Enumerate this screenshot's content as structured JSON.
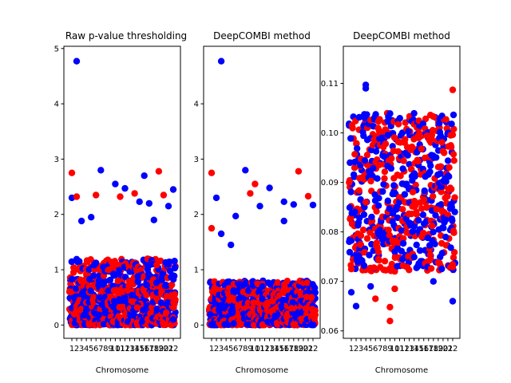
{
  "colors": {
    "series_a": "#ff0000",
    "series_b": "#0000ff"
  },
  "chart_data": [
    {
      "type": "scatter",
      "title": "Raw p-value thresholding",
      "xlabel": "Chromosome",
      "ylabel": "",
      "x_ticks": [
        "1",
        "2",
        "3",
        "4",
        "5",
        "6",
        "7",
        "8",
        "9",
        "10",
        "11",
        "12",
        "13",
        "14",
        "15",
        "16",
        "17",
        "18",
        "19",
        "20",
        "21",
        "22"
      ],
      "ylim": [
        -0.24,
        5.04
      ],
      "y_ticks": [
        0,
        1,
        2,
        3,
        4,
        5
      ],
      "y_tick_labels": [
        "0",
        "1",
        "2",
        "3",
        "4",
        "5"
      ],
      "grid": false,
      "point_spread": [
        0,
        1.2
      ],
      "highlights": [
        {
          "chromosome": 2,
          "value": 4.77,
          "series": "b"
        },
        {
          "chromosome": 7,
          "value": 2.8,
          "series": "b"
        },
        {
          "chromosome": 1,
          "value": 2.75,
          "series": "a"
        },
        {
          "chromosome": 16,
          "value": 2.7,
          "series": "b"
        },
        {
          "chromosome": 19,
          "value": 2.78,
          "series": "a"
        },
        {
          "chromosome": 10,
          "value": 2.55,
          "series": "b"
        },
        {
          "chromosome": 12,
          "value": 2.47,
          "series": "b"
        },
        {
          "chromosome": 22,
          "value": 2.45,
          "series": "b"
        },
        {
          "chromosome": 14,
          "value": 2.38,
          "series": "a"
        },
        {
          "chromosome": 6,
          "value": 2.35,
          "series": "a"
        },
        {
          "chromosome": 1,
          "value": 2.3,
          "series": "b"
        },
        {
          "chromosome": 2,
          "value": 2.32,
          "series": "a"
        },
        {
          "chromosome": 20,
          "value": 2.35,
          "series": "a"
        },
        {
          "chromosome": 11,
          "value": 2.32,
          "series": "a"
        },
        {
          "chromosome": 15,
          "value": 2.23,
          "series": "b"
        },
        {
          "chromosome": 17,
          "value": 2.2,
          "series": "b"
        },
        {
          "chromosome": 21,
          "value": 2.15,
          "series": "b"
        },
        {
          "chromosome": 5,
          "value": 1.95,
          "series": "b"
        },
        {
          "chromosome": 3,
          "value": 1.88,
          "series": "b"
        },
        {
          "chromosome": 18,
          "value": 1.9,
          "series": "b"
        }
      ]
    },
    {
      "type": "scatter",
      "title": "DeepCOMBI method",
      "xlabel": "Chromosome",
      "ylabel": "",
      "x_ticks": [
        "1",
        "2",
        "3",
        "4",
        "5",
        "6",
        "7",
        "8",
        "9",
        "10",
        "11",
        "12",
        "13",
        "14",
        "15",
        "16",
        "17",
        "18",
        "19",
        "20",
        "21",
        "22"
      ],
      "ylim": [
        -0.24,
        5.04
      ],
      "y_ticks": [
        0,
        1,
        2,
        3,
        4
      ],
      "y_tick_labels": [
        "0",
        "1",
        "2",
        "3",
        "4"
      ],
      "grid": false,
      "point_spread": [
        0,
        0.8
      ],
      "highlights": [
        {
          "chromosome": 3,
          "value": 4.77,
          "series": "b"
        },
        {
          "chromosome": 8,
          "value": 2.8,
          "series": "b"
        },
        {
          "chromosome": 1,
          "value": 2.75,
          "series": "a"
        },
        {
          "chromosome": 19,
          "value": 2.78,
          "series": "a"
        },
        {
          "chromosome": 10,
          "value": 2.55,
          "series": "a"
        },
        {
          "chromosome": 13,
          "value": 2.48,
          "series": "b"
        },
        {
          "chromosome": 9,
          "value": 2.38,
          "series": "a"
        },
        {
          "chromosome": 2,
          "value": 2.3,
          "series": "b"
        },
        {
          "chromosome": 21,
          "value": 2.33,
          "series": "a"
        },
        {
          "chromosome": 16,
          "value": 2.23,
          "series": "b"
        },
        {
          "chromosome": 18,
          "value": 2.18,
          "series": "b"
        },
        {
          "chromosome": 11,
          "value": 2.15,
          "series": "b"
        },
        {
          "chromosome": 6,
          "value": 1.97,
          "series": "b"
        },
        {
          "chromosome": 16,
          "value": 1.88,
          "series": "b"
        },
        {
          "chromosome": 1,
          "value": 1.75,
          "series": "a"
        },
        {
          "chromosome": 22,
          "value": 2.17,
          "series": "b"
        },
        {
          "chromosome": 3,
          "value": 1.65,
          "series": "b"
        },
        {
          "chromosome": 5,
          "value": 1.45,
          "series": "b"
        }
      ]
    },
    {
      "type": "scatter",
      "title": "DeepCOMBI method",
      "xlabel": "Chromosome",
      "ylabel": "",
      "x_ticks": [
        "1",
        "2",
        "3",
        "4",
        "5",
        "6",
        "7",
        "8",
        "9",
        "10",
        "11",
        "12",
        "13",
        "14",
        "15",
        "16",
        "17",
        "18",
        "19",
        "20",
        "21",
        "22"
      ],
      "ylim": [
        0.0585,
        0.1175
      ],
      "y_ticks": [
        0.06,
        0.07,
        0.08,
        0.09,
        0.1,
        0.11
      ],
      "y_tick_labels": [
        "0.06",
        "0.07",
        "0.08",
        "0.09",
        "0.10",
        "0.11"
      ],
      "grid": false,
      "point_spread": [
        0.072,
        0.104
      ],
      "highlights": [
        {
          "chromosome": 4,
          "value": 0.1097,
          "series": "b"
        },
        {
          "chromosome": 4,
          "value": 0.109,
          "series": "b"
        },
        {
          "chromosome": 22,
          "value": 0.1087,
          "series": "a"
        },
        {
          "chromosome": 9,
          "value": 0.062,
          "series": "a"
        },
        {
          "chromosome": 9,
          "value": 0.0648,
          "series": "a"
        },
        {
          "chromosome": 2,
          "value": 0.065,
          "series": "b"
        },
        {
          "chromosome": 22,
          "value": 0.066,
          "series": "b"
        },
        {
          "chromosome": 6,
          "value": 0.0665,
          "series": "a"
        },
        {
          "chromosome": 1,
          "value": 0.0678,
          "series": "b"
        },
        {
          "chromosome": 18,
          "value": 0.07,
          "series": "b"
        },
        {
          "chromosome": 1,
          "value": 0.0725,
          "series": "a"
        },
        {
          "chromosome": 10,
          "value": 0.0685,
          "series": "a"
        },
        {
          "chromosome": 5,
          "value": 0.069,
          "series": "b"
        }
      ]
    }
  ]
}
